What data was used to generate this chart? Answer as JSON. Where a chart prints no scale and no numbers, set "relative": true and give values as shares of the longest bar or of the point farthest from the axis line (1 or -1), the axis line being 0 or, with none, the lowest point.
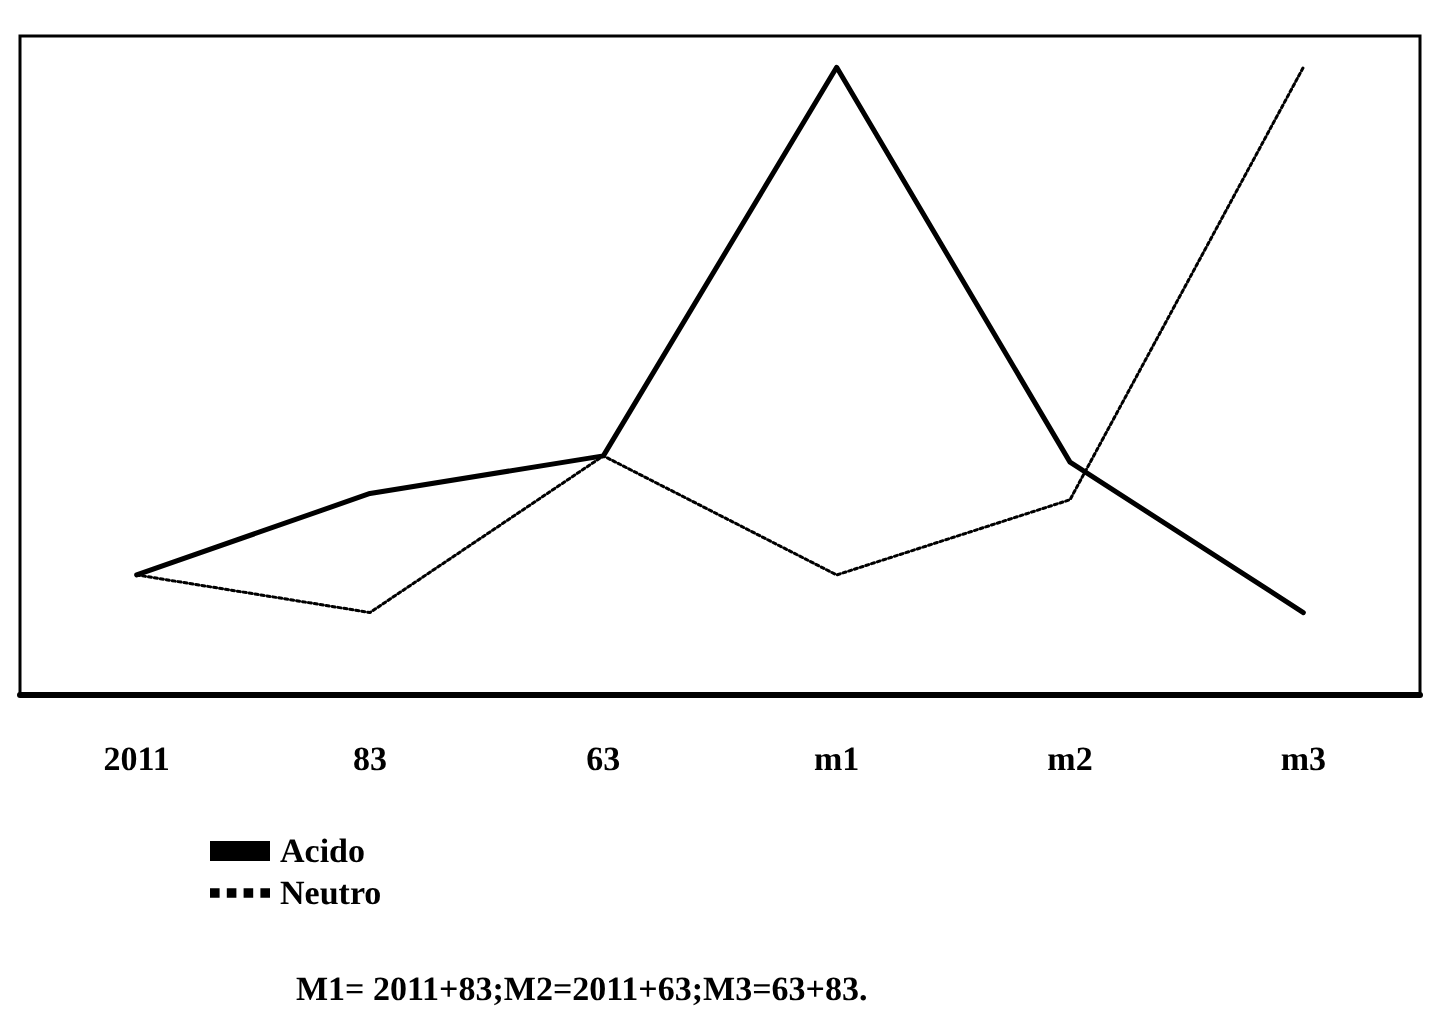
{
  "chart_data": {
    "type": "line",
    "relative": true,
    "categories": [
      "2011",
      "83",
      "63",
      "m1",
      "m2",
      "m3"
    ],
    "series": [
      {
        "name": "Acido",
        "color": "#000000",
        "line_style": "solid",
        "values": [
          0.19,
          0.32,
          0.38,
          1,
          0.37,
          0.13
        ]
      },
      {
        "name": "Neutro",
        "color": "#000000",
        "line_style": "dotted",
        "values": [
          0.19,
          0.13,
          0.38,
          0.19,
          0.31,
          1
        ]
      }
    ],
    "annotations": [
      "M1= 2011+83;M2=2011+63;M3=63+83."
    ],
    "marker": "none",
    "grid": false,
    "legend": "bottom left"
  }
}
